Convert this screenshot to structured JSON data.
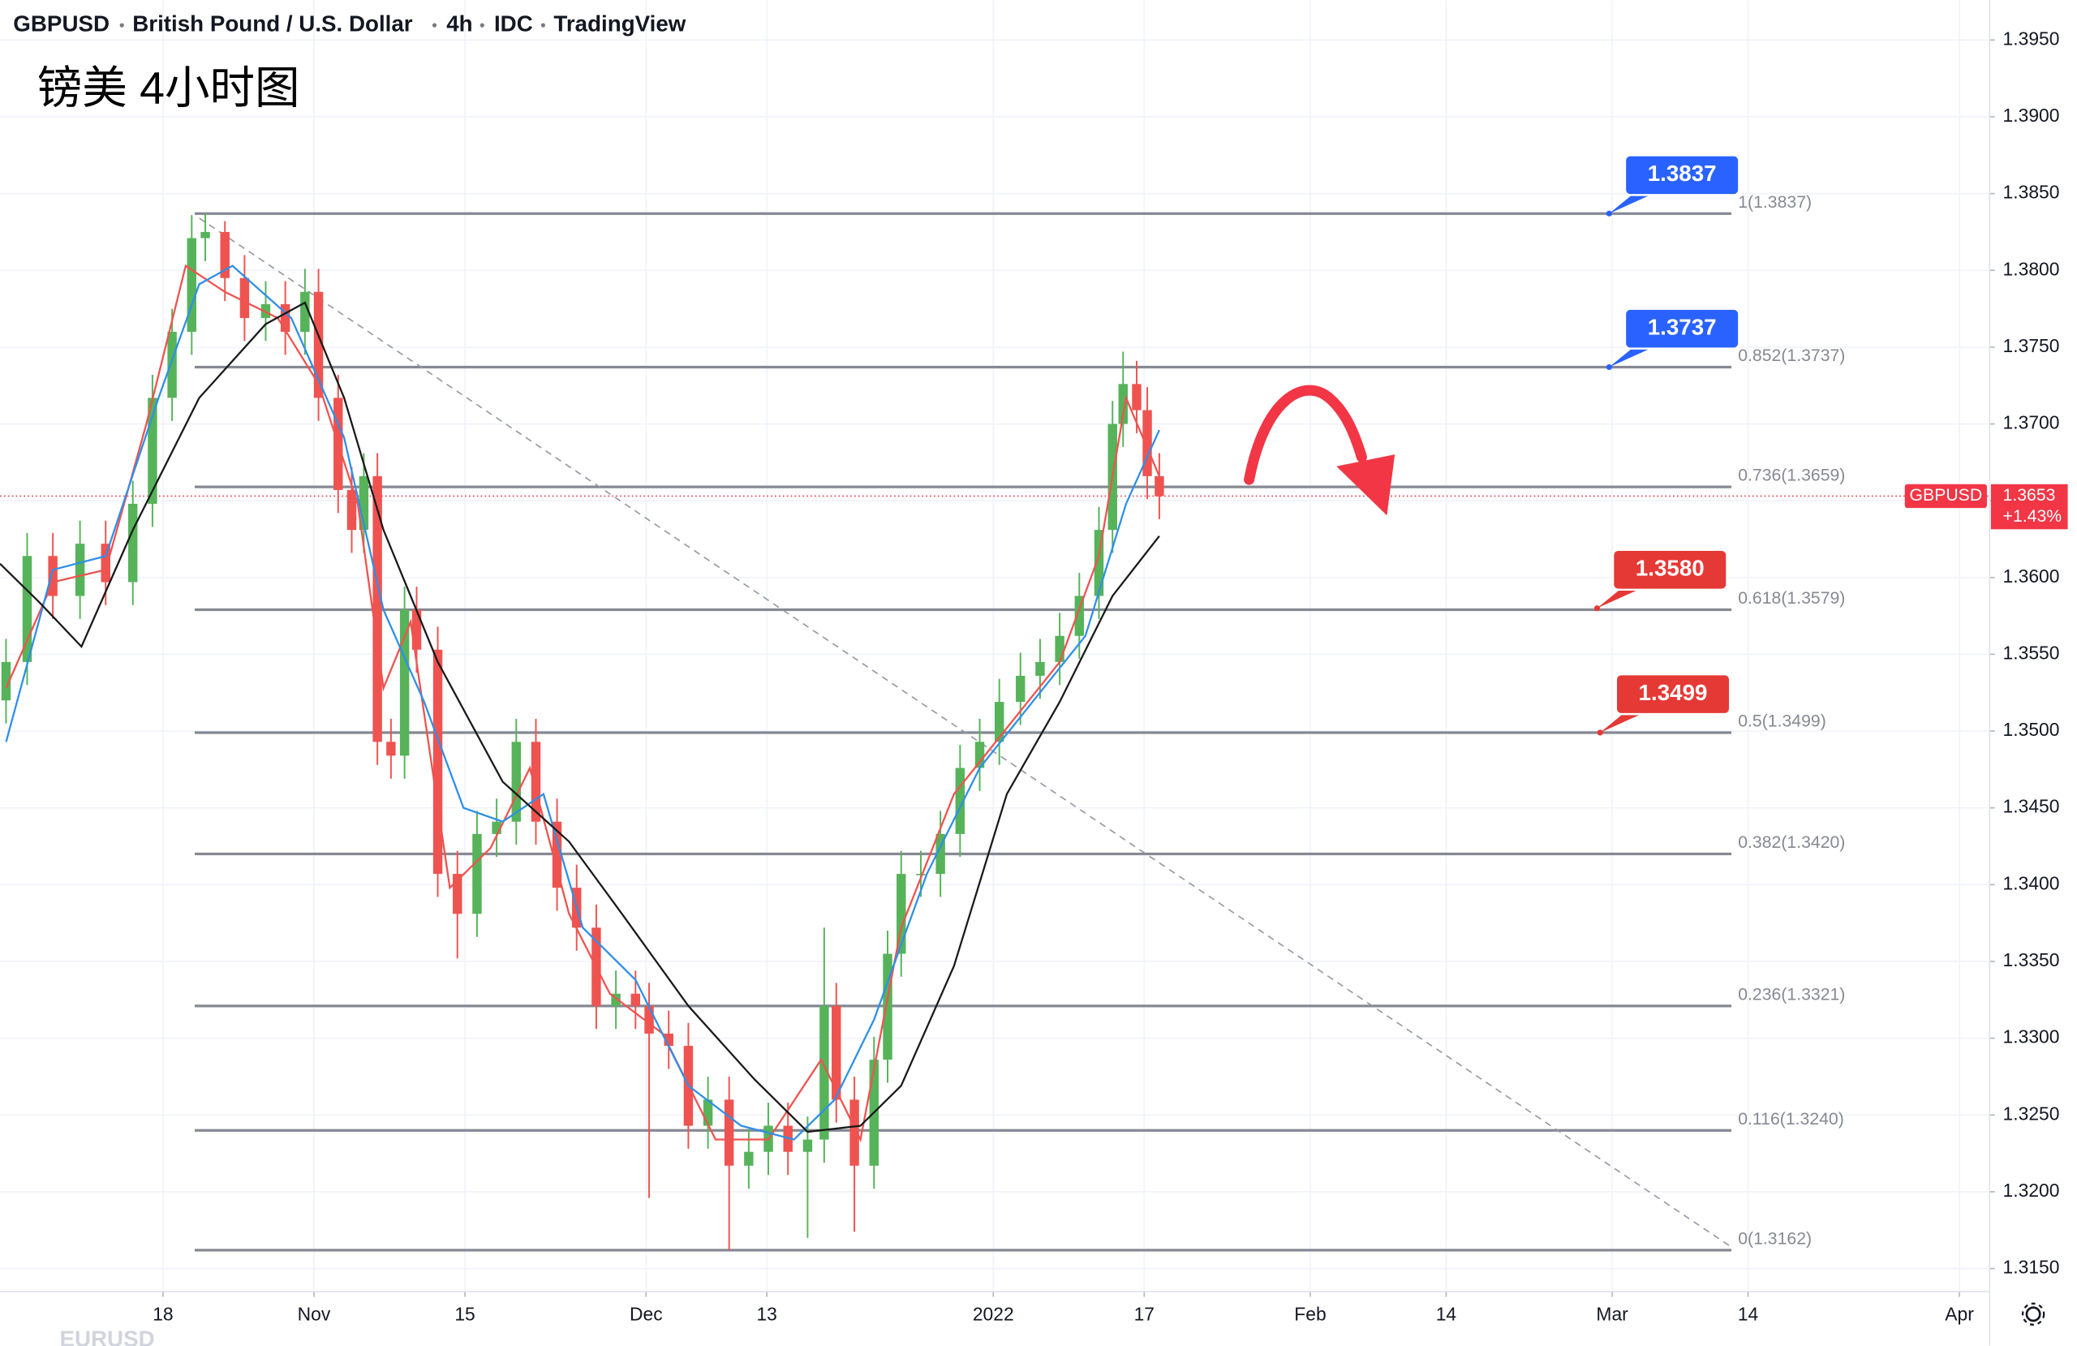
{
  "header": {
    "symbol": "GBPUSD",
    "name": "British Pound / U.S. Dollar",
    "interval": "4h",
    "source": "IDC",
    "platform": "TradingView"
  },
  "chart_data": {
    "type": "candlestick",
    "title": "镑美 4小时图",
    "x": [
      -10.4,
      -9.0,
      -7.3,
      -5.5,
      -3.8,
      -2.0,
      -0.7,
      0.6,
      1.9,
      2.8,
      4.1,
      5.4,
      6.8,
      8.1,
      9.4,
      10.3,
      11.6,
      12.5,
      13.3,
      14.2,
      15.1,
      16.0,
      16.8,
      18.2,
      19.5,
      20.8,
      22.1,
      23.4,
      24.7,
      26.1,
      27.4,
      28.7,
      30.0,
      31.3,
      32.2,
      33.5,
      34.8,
      36.1,
      37.5,
      38.8,
      40.1,
      41.4,
      42.7,
      43.8,
      44.6,
      45.8,
      47.1,
      48.0,
      48.9,
      50.2,
      51.5,
      52.8,
      54.1,
      55.4,
      56.8,
      58.1,
      59.4,
      60.7,
      62.0,
      62.9,
      63.6,
      64.5,
      65.2,
      66.0
    ],
    "open": [
      1.352,
      1.3545,
      1.3614,
      1.3588,
      1.3622,
      1.3597,
      1.3648,
      1.3717,
      1.376,
      1.3821,
      1.3825,
      1.3795,
      1.3769,
      1.3778,
      1.376,
      1.3786,
      1.3717,
      1.3657,
      1.3631,
      1.3666,
      1.3493,
      1.3484,
      1.3579,
      1.3553,
      1.3407,
      1.3381,
      1.3433,
      1.3441,
      1.3493,
      1.3441,
      1.3398,
      1.3372,
      1.3321,
      1.3329,
      1.3321,
      1.3303,
      1.3295,
      1.3243,
      1.326,
      1.3217,
      1.3226,
      1.3243,
      1.3226,
      1.3234,
      1.3321,
      1.326,
      1.3217,
      1.3286,
      1.3355,
      1.3407,
      1.3407,
      1.3433,
      1.3476,
      1.3493,
      1.3519,
      1.3536,
      1.3545,
      1.3562,
      1.3588,
      1.3631,
      1.37,
      1.3726,
      1.3709,
      1.3666
    ],
    "high": [
      1.356,
      1.3629,
      1.3629,
      1.3637,
      1.3637,
      1.3663,
      1.3732,
      1.3775,
      1.3836,
      1.3837,
      1.3832,
      1.381,
      1.3793,
      1.3793,
      1.3801,
      1.3801,
      1.3732,
      1.3672,
      1.3681,
      1.3681,
      1.3508,
      1.3594,
      1.3594,
      1.3568,
      1.3422,
      1.3448,
      1.3456,
      1.3508,
      1.3508,
      1.3456,
      1.3413,
      1.3387,
      1.3344,
      1.3344,
      1.3336,
      1.3318,
      1.331,
      1.3275,
      1.3275,
      1.3241,
      1.3258,
      1.3258,
      1.3249,
      1.3372,
      1.3336,
      1.3275,
      1.3301,
      1.337,
      1.3422,
      1.3422,
      1.3448,
      1.3491,
      1.3508,
      1.3534,
      1.3551,
      1.356,
      1.3577,
      1.3603,
      1.3646,
      1.3715,
      1.3747,
      1.3741,
      1.3724,
      1.3681
    ],
    "low": [
      1.3505,
      1.353,
      1.3573,
      1.3573,
      1.3582,
      1.3582,
      1.3633,
      1.3702,
      1.3745,
      1.3806,
      1.378,
      1.3754,
      1.3754,
      1.3745,
      1.3745,
      1.3702,
      1.3642,
      1.3616,
      1.3616,
      1.3478,
      1.3469,
      1.3469,
      1.3538,
      1.3392,
      1.3352,
      1.3366,
      1.3418,
      1.3426,
      1.3426,
      1.3383,
      1.3357,
      1.3306,
      1.3306,
      1.3306,
      1.3196,
      1.328,
      1.3228,
      1.3228,
      1.3162,
      1.3202,
      1.3211,
      1.3211,
      1.317,
      1.3219,
      1.3245,
      1.3174,
      1.3202,
      1.3271,
      1.334,
      1.3392,
      1.3392,
      1.3418,
      1.3461,
      1.3478,
      1.3504,
      1.3521,
      1.353,
      1.3547,
      1.3573,
      1.3616,
      1.3685,
      1.3694,
      1.3651,
      1.3638
    ],
    "close": [
      1.3545,
      1.3614,
      1.3588,
      1.3622,
      1.3597,
      1.3648,
      1.3717,
      1.376,
      1.3821,
      1.3825,
      1.3795,
      1.3769,
      1.3778,
      1.376,
      1.3786,
      1.3717,
      1.3657,
      1.3631,
      1.3666,
      1.3493,
      1.3484,
      1.3579,
      1.3553,
      1.3407,
      1.3381,
      1.3433,
      1.3441,
      1.3493,
      1.3441,
      1.3398,
      1.3372,
      1.3321,
      1.3329,
      1.3321,
      1.3303,
      1.3295,
      1.3243,
      1.326,
      1.3217,
      1.3226,
      1.3243,
      1.3226,
      1.3234,
      1.3321,
      1.326,
      1.3217,
      1.3286,
      1.3355,
      1.3407,
      1.3407,
      1.3433,
      1.3476,
      1.3493,
      1.3519,
      1.3536,
      1.3545,
      1.3562,
      1.3588,
      1.3631,
      1.37,
      1.3726,
      1.3709,
      1.3666,
      1.3653
    ],
    "up_color": "#56b35a",
    "down_color": "#ef5350",
    "xlim": [
      -10.8,
      121
    ],
    "ylim": [
      1.3135,
      1.3976
    ],
    "xticks": [
      {
        "value": 0,
        "label": "18"
      },
      {
        "value": 10,
        "label": "Nov"
      },
      {
        "value": 20,
        "label": "15"
      },
      {
        "value": 32,
        "label": "Dec"
      },
      {
        "value": 40,
        "label": "13"
      },
      {
        "value": 55,
        "label": "2022"
      },
      {
        "value": 65,
        "label": "17"
      },
      {
        "value": 76,
        "label": "Feb"
      },
      {
        "value": 85,
        "label": "14"
      },
      {
        "value": 96,
        "label": "Mar"
      },
      {
        "value": 105,
        "label": "14"
      },
      {
        "value": 119,
        "label": "Apr"
      }
    ],
    "yticks": [
      {
        "value": 1.315,
        "label": "1.3150"
      },
      {
        "value": 1.32,
        "label": "1.3200"
      },
      {
        "value": 1.325,
        "label": "1.3250"
      },
      {
        "value": 1.33,
        "label": "1.3300"
      },
      {
        "value": 1.335,
        "label": "1.3350"
      },
      {
        "value": 1.34,
        "label": "1.3400"
      },
      {
        "value": 1.345,
        "label": "1.3450"
      },
      {
        "value": 1.35,
        "label": "1.3500"
      },
      {
        "value": 1.355,
        "label": "1.3550"
      },
      {
        "value": 1.36,
        "label": "1.3600"
      },
      {
        "value": 1.365,
        "label": "1.3650"
      },
      {
        "value": 1.37,
        "label": "1.3700"
      },
      {
        "value": 1.375,
        "label": "1.3750"
      },
      {
        "value": 1.38,
        "label": "1.3800"
      },
      {
        "value": 1.385,
        "label": "1.3850"
      },
      {
        "value": 1.39,
        "label": "1.3900"
      },
      {
        "value": 1.395,
        "label": "1.3950"
      }
    ],
    "grid": true,
    "moving_averages": [
      {
        "color": "#ef5350",
        "x": [
          -10.4,
          -7.3,
          -3.8,
          -1.1,
          1.5,
          4.1,
          7.6,
          10.3,
          12.9,
          14.6,
          16.4,
          19.0,
          21.7,
          24.3,
          26.9,
          29.6,
          33.1,
          36.6,
          40.1,
          43.6,
          46.2,
          48.9,
          52.4,
          55.9,
          59.4,
          62.0,
          63.8,
          66.0
        ],
        "values": [
          1.3528,
          1.3597,
          1.3605,
          1.37,
          1.3803,
          1.3786,
          1.3769,
          1.3726,
          1.3648,
          1.3528,
          1.3571,
          1.3398,
          1.3424,
          1.3476,
          1.3381,
          1.3329,
          1.3303,
          1.3234,
          1.3234,
          1.3286,
          1.3234,
          1.3372,
          1.3459,
          1.3502,
          1.3545,
          1.3614,
          1.3717,
          1.3666
        ]
      },
      {
        "color": "#2f8fe8",
        "x": [
          -10.4,
          -7.3,
          -3.8,
          -0.3,
          2.4,
          4.6,
          8.5,
          12.0,
          14.6,
          17.3,
          19.9,
          22.5,
          25.2,
          27.8,
          31.3,
          34.8,
          38.3,
          41.8,
          44.5,
          47.1,
          50.6,
          54.1,
          57.6,
          61.1,
          63.8,
          66.0
        ],
        "values": [
          1.3493,
          1.3605,
          1.3614,
          1.3717,
          1.3791,
          1.3803,
          1.3769,
          1.3691,
          1.3579,
          1.3519,
          1.345,
          1.3441,
          1.3459,
          1.3372,
          1.3338,
          1.3269,
          1.3243,
          1.3234,
          1.326,
          1.3312,
          1.3407,
          1.3476,
          1.3519,
          1.3562,
          1.3648,
          1.3696
        ]
      },
      {
        "color": "#1a1a1a",
        "x": [
          -10.8,
          -8.2,
          -5.4,
          -2.0,
          2.4,
          6.8,
          9.4,
          12.0,
          14.6,
          18.2,
          22.5,
          26.9,
          30.4,
          34.8,
          39.2,
          42.7,
          46.2,
          48.9,
          52.4,
          55.9,
          59.4,
          62.9,
          66.0
        ],
        "values": [
          1.3609,
          1.3584,
          1.3555,
          1.3631,
          1.3717,
          1.3765,
          1.3779,
          1.3717,
          1.3631,
          1.3545,
          1.3467,
          1.3428,
          1.3381,
          1.3321,
          1.3273,
          1.3239,
          1.3243,
          1.3269,
          1.3347,
          1.3459,
          1.3519,
          1.3588,
          1.3627
        ]
      }
    ],
    "fib_levels": {
      "x_start": 2.1,
      "x_end": 103.9,
      "color": "#868993",
      "levels": [
        {
          "value": 1.3837,
          "label": "1(1.3837)"
        },
        {
          "value": 1.3737,
          "label": "0.852(1.3737)"
        },
        {
          "value": 1.3659,
          "label": "0.736(1.3659)"
        },
        {
          "value": 1.3579,
          "label": "0.618(1.3579)"
        },
        {
          "value": 1.3499,
          "label": "0.5(1.3499)"
        },
        {
          "value": 1.342,
          "label": "0.382(1.3420)"
        },
        {
          "value": 1.3321,
          "label": "0.236(1.3321)"
        },
        {
          "value": 1.324,
          "label": "0.116(1.3240)"
        },
        {
          "value": 1.3162,
          "label": "0(1.3162)"
        }
      ]
    },
    "trend_line": {
      "x": [
        2.4,
        103.9
      ],
      "values": [
        1.3834,
        1.3164
      ]
    },
    "callouts": [
      {
        "x": 95.8,
        "value": 1.3837,
        "label": "1.3837",
        "color": "#2962ff"
      },
      {
        "x": 95.8,
        "value": 1.3737,
        "label": "1.3737",
        "color": "#2962ff"
      },
      {
        "x": 95.0,
        "value": 1.358,
        "label": "1.3580",
        "color": "#e53935"
      },
      {
        "x": 95.2,
        "value": 1.3499,
        "label": "1.3499",
        "color": "#e53935"
      }
    ],
    "last_price": {
      "symbol": "GBPUSD",
      "value": 1.3653,
      "label": "1.3653",
      "change": "+1.43%",
      "color": "#f23645"
    },
    "footer_symbol": "EURUSD"
  }
}
